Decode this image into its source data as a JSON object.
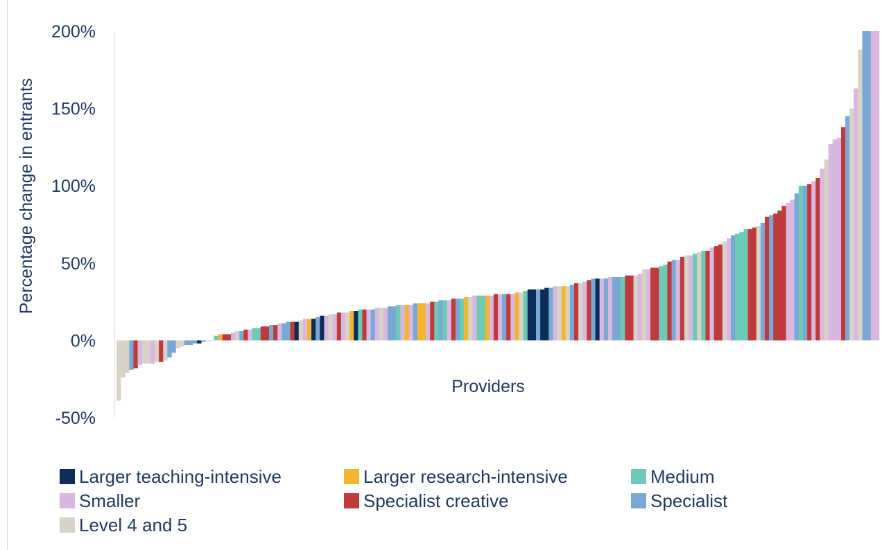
{
  "chart_data": {
    "type": "bar",
    "xlabel": "Providers",
    "ylabel": "Percentage change in entrants",
    "ylim": [
      -50,
      200
    ],
    "yticks": [
      {
        "value": 200,
        "label": "200%"
      },
      {
        "value": 150,
        "label": "150%"
      },
      {
        "value": 100,
        "label": "100%"
      },
      {
        "value": 50,
        "label": "50%"
      },
      {
        "value": 0,
        "label": "0%"
      },
      {
        "value": -50,
        "label": "-50%"
      }
    ],
    "grid": false,
    "legend_position": "bottom",
    "colors": {
      "Larger teaching-intensive": "#0c2d5a",
      "Larger research-intensive": "#f2b632",
      "Medium": "#6ccbb5",
      "Smaller": "#d9b8e0",
      "Specialist creative": "#c0393b",
      "Specialist": "#79a8d4",
      "Level 4 and 5": "#d8d2c8"
    },
    "legend": [
      "Larger teaching-intensive",
      "Larger research-intensive",
      "Medium",
      "Smaller",
      "Specialist creative",
      "Specialist",
      "Level 4 and 5"
    ],
    "bars": [
      {
        "v": -39,
        "g": "Level 4 and 5"
      },
      {
        "v": -24,
        "g": "Level 4 and 5"
      },
      {
        "v": -21,
        "g": "Level 4 and 5"
      },
      {
        "v": -19,
        "g": "Specialist"
      },
      {
        "v": -18,
        "g": "Specialist creative"
      },
      {
        "v": -16,
        "g": "Smaller"
      },
      {
        "v": -15,
        "g": "Level 4 and 5"
      },
      {
        "v": -15,
        "g": "Level 4 and 5"
      },
      {
        "v": -15,
        "g": "Smaller"
      },
      {
        "v": -14,
        "g": "Level 4 and 5"
      },
      {
        "v": -14,
        "g": "Specialist creative"
      },
      {
        "v": -13,
        "g": "Level 4 and 5"
      },
      {
        "v": -11,
        "g": "Specialist"
      },
      {
        "v": -8,
        "g": "Specialist"
      },
      {
        "v": -5,
        "g": "Level 4 and 5"
      },
      {
        "v": -4,
        "g": "Level 4 and 5"
      },
      {
        "v": -3,
        "g": "Specialist"
      },
      {
        "v": -3,
        "g": "Specialist"
      },
      {
        "v": -2,
        "g": "Specialist"
      },
      {
        "v": -2,
        "g": "Larger teaching-intensive"
      },
      {
        "v": -1,
        "g": "Specialist"
      },
      {
        "v": 0,
        "g": "Smaller"
      },
      {
        "v": 0,
        "g": "Smaller"
      },
      {
        "v": 3,
        "g": "Medium"
      },
      {
        "v": 4,
        "g": "Larger research-intensive"
      },
      {
        "v": 4,
        "g": "Specialist creative"
      },
      {
        "v": 4,
        "g": "Specialist creative"
      },
      {
        "v": 5,
        "g": "Smaller"
      },
      {
        "v": 6,
        "g": "Level 4 and 5"
      },
      {
        "v": 6,
        "g": "Specialist"
      },
      {
        "v": 7,
        "g": "Specialist creative"
      },
      {
        "v": 7,
        "g": "Smaller"
      },
      {
        "v": 8,
        "g": "Medium"
      },
      {
        "v": 8,
        "g": "Medium"
      },
      {
        "v": 9,
        "g": "Specialist creative"
      },
      {
        "v": 9,
        "g": "Specialist creative"
      },
      {
        "v": 10,
        "g": "Specialist"
      },
      {
        "v": 10,
        "g": "Specialist creative"
      },
      {
        "v": 11,
        "g": "Smaller"
      },
      {
        "v": 11,
        "g": "Specialist"
      },
      {
        "v": 12,
        "g": "Specialist"
      },
      {
        "v": 12,
        "g": "Specialist creative"
      },
      {
        "v": 12,
        "g": "Larger teaching-intensive"
      },
      {
        "v": 13,
        "g": "Level 4 and 5"
      },
      {
        "v": 14,
        "g": "Smaller"
      },
      {
        "v": 14,
        "g": "Larger research-intensive"
      },
      {
        "v": 14,
        "g": "Larger teaching-intensive"
      },
      {
        "v": 15,
        "g": "Specialist"
      },
      {
        "v": 16,
        "g": "Larger teaching-intensive"
      },
      {
        "v": 16,
        "g": "Smaller"
      },
      {
        "v": 17,
        "g": "Level 4 and 5"
      },
      {
        "v": 17,
        "g": "Smaller"
      },
      {
        "v": 18,
        "g": "Specialist creative"
      },
      {
        "v": 18,
        "g": "Smaller"
      },
      {
        "v": 18,
        "g": "Level 4 and 5"
      },
      {
        "v": 19,
        "g": "Larger research-intensive"
      },
      {
        "v": 19,
        "g": "Larger teaching-intensive"
      },
      {
        "v": 20,
        "g": "Medium"
      },
      {
        "v": 20,
        "g": "Specialist creative"
      },
      {
        "v": 20,
        "g": "Smaller"
      },
      {
        "v": 20,
        "g": "Specialist"
      },
      {
        "v": 21,
        "g": "Smaller"
      },
      {
        "v": 21,
        "g": "Level 4 and 5"
      },
      {
        "v": 21,
        "g": "Smaller"
      },
      {
        "v": 22,
        "g": "Specialist"
      },
      {
        "v": 22,
        "g": "Specialist"
      },
      {
        "v": 23,
        "g": "Medium"
      },
      {
        "v": 23,
        "g": "Smaller"
      },
      {
        "v": 23,
        "g": "Larger research-intensive"
      },
      {
        "v": 23,
        "g": "Smaller"
      },
      {
        "v": 24,
        "g": "Specialist"
      },
      {
        "v": 24,
        "g": "Larger research-intensive"
      },
      {
        "v": 24,
        "g": "Larger research-intensive"
      },
      {
        "v": 24,
        "g": "Smaller"
      },
      {
        "v": 25,
        "g": "Specialist creative"
      },
      {
        "v": 25,
        "g": "Medium"
      },
      {
        "v": 26,
        "g": "Specialist"
      },
      {
        "v": 26,
        "g": "Medium"
      },
      {
        "v": 26,
        "g": "Smaller"
      },
      {
        "v": 27,
        "g": "Specialist creative"
      },
      {
        "v": 27,
        "g": "Specialist"
      },
      {
        "v": 27,
        "g": "Medium"
      },
      {
        "v": 28,
        "g": "Larger research-intensive"
      },
      {
        "v": 28,
        "g": "Level 4 and 5"
      },
      {
        "v": 29,
        "g": "Smaller"
      },
      {
        "v": 29,
        "g": "Medium"
      },
      {
        "v": 29,
        "g": "Medium"
      },
      {
        "v": 29,
        "g": "Larger research-intensive"
      },
      {
        "v": 29,
        "g": "Smaller"
      },
      {
        "v": 30,
        "g": "Specialist creative"
      },
      {
        "v": 30,
        "g": "Smaller"
      },
      {
        "v": 30,
        "g": "Specialist"
      },
      {
        "v": 30,
        "g": "Specialist creative"
      },
      {
        "v": 30,
        "g": "Smaller"
      },
      {
        "v": 31,
        "g": "Larger research-intensive"
      },
      {
        "v": 31,
        "g": "Level 4 and 5"
      },
      {
        "v": 32,
        "g": "Medium"
      },
      {
        "v": 33,
        "g": "Larger teaching-intensive"
      },
      {
        "v": 33,
        "g": "Larger teaching-intensive"
      },
      {
        "v": 33,
        "g": "Specialist"
      },
      {
        "v": 33,
        "g": "Larger teaching-intensive"
      },
      {
        "v": 34,
        "g": "Larger teaching-intensive"
      },
      {
        "v": 34,
        "g": "Specialist"
      },
      {
        "v": 35,
        "g": "Smaller"
      },
      {
        "v": 35,
        "g": "Level 4 and 5"
      },
      {
        "v": 35,
        "g": "Larger research-intensive"
      },
      {
        "v": 35,
        "g": "Level 4 and 5"
      },
      {
        "v": 36,
        "g": "Specialist"
      },
      {
        "v": 37,
        "g": "Specialist creative"
      },
      {
        "v": 37,
        "g": "Level 4 and 5"
      },
      {
        "v": 38,
        "g": "Smaller"
      },
      {
        "v": 39,
        "g": "Specialist creative"
      },
      {
        "v": 40,
        "g": "Specialist"
      },
      {
        "v": 40,
        "g": "Larger teaching-intensive"
      },
      {
        "v": 40,
        "g": "Smaller"
      },
      {
        "v": 40,
        "g": "Specialist"
      },
      {
        "v": 41,
        "g": "Smaller"
      },
      {
        "v": 41,
        "g": "Specialist"
      },
      {
        "v": 41,
        "g": "Specialist"
      },
      {
        "v": 41,
        "g": "Medium"
      },
      {
        "v": 42,
        "g": "Specialist creative"
      },
      {
        "v": 42,
        "g": "Specialist creative"
      },
      {
        "v": 42,
        "g": "Level 4 and 5"
      },
      {
        "v": 43,
        "g": "Smaller"
      },
      {
        "v": 46,
        "g": "Level 4 and 5"
      },
      {
        "v": 46,
        "g": "Smaller"
      },
      {
        "v": 47,
        "g": "Specialist creative"
      },
      {
        "v": 47,
        "g": "Specialist creative"
      },
      {
        "v": 48,
        "g": "Medium"
      },
      {
        "v": 49,
        "g": "Medium"
      },
      {
        "v": 51,
        "g": "Specialist creative"
      },
      {
        "v": 52,
        "g": "Specialist"
      },
      {
        "v": 52,
        "g": "Smaller"
      },
      {
        "v": 54,
        "g": "Specialist creative"
      },
      {
        "v": 55,
        "g": "Level 4 and 5"
      },
      {
        "v": 55,
        "g": "Smaller"
      },
      {
        "v": 56,
        "g": "Medium"
      },
      {
        "v": 57,
        "g": "Level 4 and 5"
      },
      {
        "v": 58,
        "g": "Medium"
      },
      {
        "v": 58,
        "g": "Specialist creative"
      },
      {
        "v": 60,
        "g": "Smaller"
      },
      {
        "v": 61,
        "g": "Specialist creative"
      },
      {
        "v": 62,
        "g": "Specialist creative"
      },
      {
        "v": 64,
        "g": "Level 4 and 5"
      },
      {
        "v": 66,
        "g": "Smaller"
      },
      {
        "v": 68,
        "g": "Specialist"
      },
      {
        "v": 69,
        "g": "Medium"
      },
      {
        "v": 70,
        "g": "Medium"
      },
      {
        "v": 72,
        "g": "Medium"
      },
      {
        "v": 72,
        "g": "Specialist creative"
      },
      {
        "v": 73,
        "g": "Specialist creative"
      },
      {
        "v": 74,
        "g": "Level 4 and 5"
      },
      {
        "v": 76,
        "g": "Specialist"
      },
      {
        "v": 80,
        "g": "Specialist creative"
      },
      {
        "v": 81,
        "g": "Specialist"
      },
      {
        "v": 82,
        "g": "Specialist creative"
      },
      {
        "v": 84,
        "g": "Specialist creative"
      },
      {
        "v": 87,
        "g": "Specialist creative"
      },
      {
        "v": 89,
        "g": "Smaller"
      },
      {
        "v": 91,
        "g": "Smaller"
      },
      {
        "v": 95,
        "g": "Specialist"
      },
      {
        "v": 100,
        "g": "Medium"
      },
      {
        "v": 100,
        "g": "Specialist"
      },
      {
        "v": 101,
        "g": "Specialist creative"
      },
      {
        "v": 103,
        "g": "Smaller"
      },
      {
        "v": 105,
        "g": "Specialist creative"
      },
      {
        "v": 111,
        "g": "Smaller"
      },
      {
        "v": 117,
        "g": "Level 4 and 5"
      },
      {
        "v": 127,
        "g": "Smaller"
      },
      {
        "v": 130,
        "g": "Smaller"
      },
      {
        "v": 131,
        "g": "Smaller"
      },
      {
        "v": 138,
        "g": "Specialist creative"
      },
      {
        "v": 145,
        "g": "Specialist"
      },
      {
        "v": 150,
        "g": "Level 4 and 5"
      },
      {
        "v": 163,
        "g": "Smaller"
      },
      {
        "v": 188,
        "g": "Level 4 and 5"
      },
      {
        "v": 200,
        "g": "Specialist"
      },
      {
        "v": 200,
        "g": "Specialist"
      },
      {
        "v": 200,
        "g": "Smaller"
      },
      {
        "v": 200,
        "g": "Smaller"
      }
    ]
  }
}
